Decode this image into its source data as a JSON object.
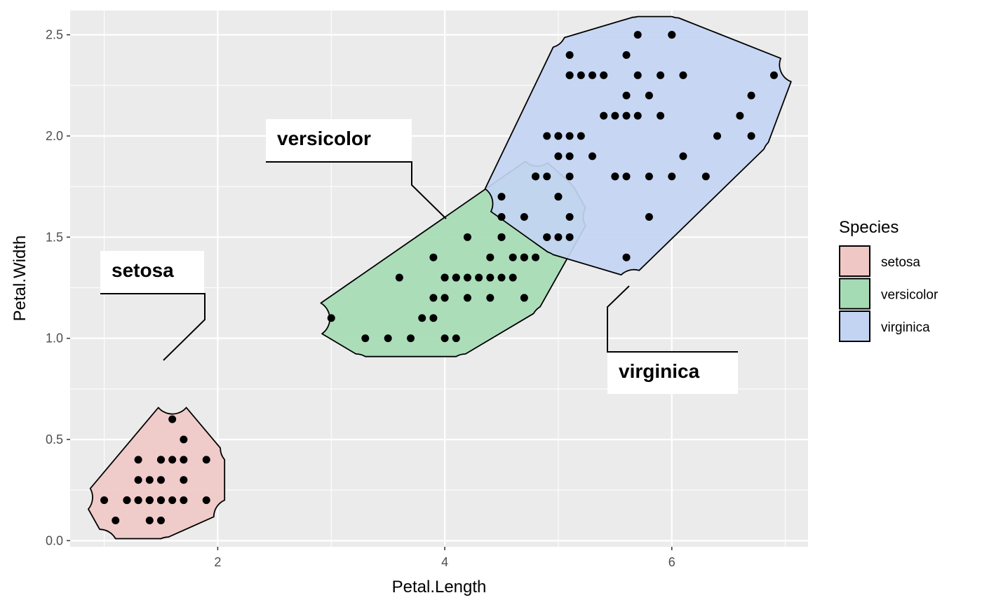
{
  "chart_data": {
    "type": "scatter",
    "xlabel": "Petal.Length",
    "ylabel": "Petal.Width",
    "xlim": [
      0.7,
      7.2
    ],
    "ylim": [
      -0.03,
      2.62
    ],
    "x_ticks": [
      2,
      4,
      6
    ],
    "x_tick_labels": [
      "2",
      "4",
      "6"
    ],
    "y_ticks": [
      0,
      0.5,
      1,
      1.5,
      2,
      2.5
    ],
    "y_tick_labels": [
      "0.0",
      "0.5",
      "1.0",
      "1.5",
      "2.0",
      "2.5"
    ],
    "grid": true,
    "legend": {
      "title": "Species",
      "position": "right"
    },
    "series": [
      {
        "name": "setosa",
        "label": "setosa",
        "color": "#F8766D",
        "fill": "#efc8c5",
        "x": [
          1.0,
          1.1,
          1.2,
          1.2,
          1.3,
          1.3,
          1.3,
          1.3,
          1.4,
          1.4,
          1.4,
          1.4,
          1.4,
          1.5,
          1.5,
          1.5,
          1.5,
          1.5,
          1.5,
          1.6,
          1.6,
          1.6,
          1.7,
          1.7,
          1.7,
          1.7,
          1.9,
          1.9
        ],
        "y": [
          0.2,
          0.1,
          0.2,
          0.2,
          0.2,
          0.3,
          0.4,
          0.2,
          0.2,
          0.1,
          0.3,
          0.2,
          0.2,
          0.2,
          0.4,
          0.1,
          0.3,
          0.2,
          0.4,
          0.2,
          0.6,
          0.4,
          0.4,
          0.2,
          0.5,
          0.3,
          0.2,
          0.4
        ]
      },
      {
        "name": "versicolor",
        "label": "versicolor",
        "color": "#00BA38",
        "fill": "#a5dbb4",
        "x": [
          3.0,
          3.3,
          3.5,
          3.6,
          3.7,
          3.8,
          3.9,
          3.9,
          3.9,
          4.0,
          4.0,
          4.0,
          4.0,
          4.1,
          4.1,
          4.1,
          4.2,
          4.2,
          4.2,
          4.3,
          4.4,
          4.4,
          4.4,
          4.5,
          4.5,
          4.5,
          4.5,
          4.6,
          4.6,
          4.7,
          4.7,
          4.7,
          4.7,
          4.8,
          4.8,
          4.9,
          4.9,
          5.0,
          5.0,
          5.1
        ],
        "y": [
          1.1,
          1.0,
          1.0,
          1.3,
          1.0,
          1.1,
          1.1,
          1.2,
          1.4,
          1.0,
          1.2,
          1.3,
          1.3,
          1.0,
          1.3,
          1.3,
          1.2,
          1.3,
          1.5,
          1.3,
          1.2,
          1.3,
          1.4,
          1.3,
          1.5,
          1.5,
          1.6,
          1.3,
          1.4,
          1.2,
          1.4,
          1.4,
          1.6,
          1.4,
          1.8,
          1.5,
          1.5,
          1.7,
          1.7,
          1.6
        ]
      },
      {
        "name": "virginica",
        "label": "virginica",
        "color": "#619CFF",
        "fill": "#c3d4f2",
        "x": [
          4.5,
          4.8,
          4.8,
          4.9,
          4.9,
          5.0,
          5.0,
          5.0,
          5.0,
          5.1,
          5.1,
          5.1,
          5.1,
          5.1,
          5.1,
          5.1,
          5.2,
          5.2,
          5.3,
          5.3,
          5.4,
          5.4,
          5.5,
          5.5,
          5.5,
          5.6,
          5.6,
          5.6,
          5.6,
          5.6,
          5.7,
          5.7,
          5.7,
          5.8,
          5.8,
          5.8,
          5.9,
          5.9,
          6.0,
          6.0,
          6.0,
          6.1,
          6.1,
          6.3,
          6.4,
          6.6,
          6.7,
          6.7,
          6.9
        ],
        "y": [
          1.7,
          1.8,
          1.8,
          1.8,
          2.0,
          1.5,
          1.9,
          2.0,
          2.0,
          1.5,
          1.8,
          1.9,
          2.0,
          2.3,
          2.3,
          2.4,
          2.0,
          2.3,
          1.9,
          2.3,
          2.1,
          2.3,
          1.8,
          2.1,
          1.8,
          1.4,
          1.8,
          2.1,
          2.2,
          2.4,
          2.1,
          2.3,
          2.5,
          1.6,
          1.8,
          2.2,
          2.1,
          2.3,
          1.8,
          2.5,
          2.5,
          1.9,
          2.3,
          1.8,
          2.0,
          2.1,
          2.0,
          2.2,
          2.3
        ]
      }
    ]
  }
}
